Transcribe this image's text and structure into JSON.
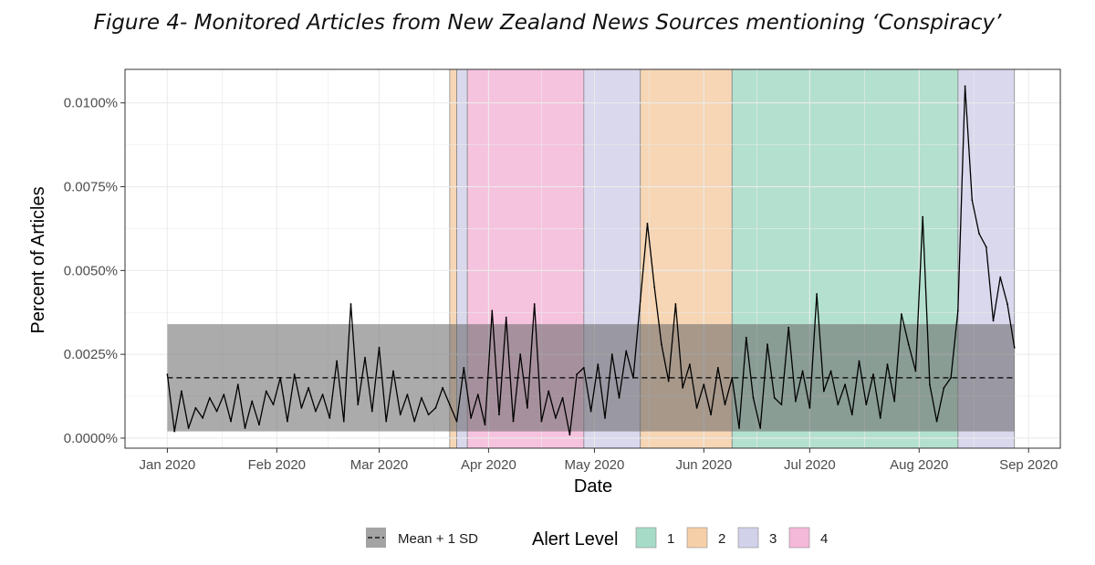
{
  "title": "Figure 4- Monitored Articles from New Zealand News Sources mentioning ‘Conspiracy’",
  "chart_data": {
    "type": "line",
    "xlabel": "Date",
    "ylabel": "Percent of Articles",
    "xlim": [
      "2019-12-20",
      "2020-09-10"
    ],
    "ylim": [
      -0.0003,
      0.011
    ],
    "x_ticks": [
      {
        "date": "2020-01-01",
        "label": "Jan 2020"
      },
      {
        "date": "2020-02-01",
        "label": "Feb 2020"
      },
      {
        "date": "2020-03-01",
        "label": "Mar 2020"
      },
      {
        "date": "2020-04-01",
        "label": "Apr 2020"
      },
      {
        "date": "2020-05-01",
        "label": "May 2020"
      },
      {
        "date": "2020-06-01",
        "label": "Jun 2020"
      },
      {
        "date": "2020-07-01",
        "label": "Jul 2020"
      },
      {
        "date": "2020-08-01",
        "label": "Aug 2020"
      },
      {
        "date": "2020-09-01",
        "label": "Sep 2020"
      }
    ],
    "y_ticks": [
      {
        "value": 0.0,
        "label": "0.0000%"
      },
      {
        "value": 0.0025,
        "label": "0.0025%"
      },
      {
        "value": 0.005,
        "label": "0.0050%"
      },
      {
        "value": 0.0075,
        "label": "0.0075%"
      },
      {
        "value": 0.01,
        "label": "0.0100%"
      }
    ],
    "grid": true,
    "mean": 0.0018,
    "sd_band": [
      0.0002,
      0.0034
    ],
    "alert_levels": [
      {
        "level": "2",
        "start": "2020-03-21",
        "end": "2020-03-23"
      },
      {
        "level": "3",
        "start": "2020-03-23",
        "end": "2020-03-26"
      },
      {
        "level": "4",
        "start": "2020-03-26",
        "end": "2020-04-28"
      },
      {
        "level": "3",
        "start": "2020-04-28",
        "end": "2020-05-14"
      },
      {
        "level": "2",
        "start": "2020-05-14",
        "end": "2020-06-09"
      },
      {
        "level": "1",
        "start": "2020-06-09",
        "end": "2020-08-12"
      },
      {
        "level": "3",
        "start": "2020-08-12",
        "end": "2020-08-28"
      }
    ],
    "series": [
      {
        "x": [
          "2020-01-01",
          "2020-01-03",
          "2020-01-05",
          "2020-01-07",
          "2020-01-09",
          "2020-01-11",
          "2020-01-13",
          "2020-01-15",
          "2020-01-17",
          "2020-01-19",
          "2020-01-21",
          "2020-01-23",
          "2020-01-25",
          "2020-01-27",
          "2020-01-29",
          "2020-01-31",
          "2020-02-02",
          "2020-02-04",
          "2020-02-06",
          "2020-02-08",
          "2020-02-10",
          "2020-02-12",
          "2020-02-14",
          "2020-02-16",
          "2020-02-18",
          "2020-02-20",
          "2020-02-22",
          "2020-02-24",
          "2020-02-26",
          "2020-02-28",
          "2020-03-01",
          "2020-03-03",
          "2020-03-05",
          "2020-03-07",
          "2020-03-09",
          "2020-03-11",
          "2020-03-13",
          "2020-03-15",
          "2020-03-17",
          "2020-03-19",
          "2020-03-21",
          "2020-03-23",
          "2020-03-25",
          "2020-03-27",
          "2020-03-29",
          "2020-03-31",
          "2020-04-02",
          "2020-04-04",
          "2020-04-06",
          "2020-04-08",
          "2020-04-10",
          "2020-04-12",
          "2020-04-14",
          "2020-04-16",
          "2020-04-18",
          "2020-04-20",
          "2020-04-22",
          "2020-04-24",
          "2020-04-26",
          "2020-04-28",
          "2020-04-30",
          "2020-05-02",
          "2020-05-04",
          "2020-05-06",
          "2020-05-08",
          "2020-05-10",
          "2020-05-12",
          "2020-05-14",
          "2020-05-16",
          "2020-05-18",
          "2020-05-20",
          "2020-05-22",
          "2020-05-24",
          "2020-05-26",
          "2020-05-28",
          "2020-05-30",
          "2020-06-01",
          "2020-06-03",
          "2020-06-05",
          "2020-06-07",
          "2020-06-09",
          "2020-06-11",
          "2020-06-13",
          "2020-06-15",
          "2020-06-17",
          "2020-06-19",
          "2020-06-21",
          "2020-06-23",
          "2020-06-25",
          "2020-06-27",
          "2020-06-29",
          "2020-07-01",
          "2020-07-03",
          "2020-07-05",
          "2020-07-07",
          "2020-07-09",
          "2020-07-11",
          "2020-07-13",
          "2020-07-15",
          "2020-07-17",
          "2020-07-19",
          "2020-07-21",
          "2020-07-23",
          "2020-07-25",
          "2020-07-27",
          "2020-07-29",
          "2020-07-31",
          "2020-08-02",
          "2020-08-04",
          "2020-08-06",
          "2020-08-08",
          "2020-08-10",
          "2020-08-12",
          "2020-08-14",
          "2020-08-16",
          "2020-08-18",
          "2020-08-20",
          "2020-08-22",
          "2020-08-24",
          "2020-08-26",
          "2020-08-28"
        ],
        "values": [
          0.0019,
          0.0002,
          0.0014,
          0.0003,
          0.0009,
          0.0006,
          0.0012,
          0.0008,
          0.0013,
          0.0005,
          0.0016,
          0.0003,
          0.0011,
          0.0004,
          0.0014,
          0.001,
          0.0018,
          0.0005,
          0.0019,
          0.0009,
          0.0015,
          0.0008,
          0.0013,
          0.0006,
          0.0023,
          0.0005,
          0.004,
          0.001,
          0.0024,
          0.0008,
          0.0027,
          0.0005,
          0.002,
          0.0007,
          0.0013,
          0.0005,
          0.0012,
          0.0007,
          0.0009,
          0.0015,
          0.001,
          0.0005,
          0.0021,
          0.0006,
          0.0013,
          0.0004,
          0.0038,
          0.0007,
          0.0036,
          0.0005,
          0.0025,
          0.0009,
          0.004,
          0.0005,
          0.0014,
          0.0006,
          0.0012,
          0.0001,
          0.0019,
          0.0021,
          0.0008,
          0.0022,
          0.0006,
          0.0025,
          0.0012,
          0.0026,
          0.0018,
          0.0041,
          0.0064,
          0.0045,
          0.0028,
          0.0017,
          0.004,
          0.0015,
          0.0022,
          0.0009,
          0.0016,
          0.0007,
          0.0021,
          0.001,
          0.0018,
          0.0003,
          0.003,
          0.0012,
          0.0003,
          0.0028,
          0.0012,
          0.001,
          0.0033,
          0.0011,
          0.002,
          0.0009,
          0.0043,
          0.0014,
          0.002,
          0.001,
          0.0016,
          0.0007,
          0.0023,
          0.001,
          0.0019,
          0.0006,
          0.0022,
          0.0011,
          0.0037,
          0.0028,
          0.002,
          0.0066,
          0.0016,
          0.0005,
          0.0015,
          0.0018,
          0.0038,
          0.0105,
          0.0071,
          0.0061,
          0.0057,
          0.0035,
          0.0048,
          0.004,
          0.0027
        ]
      }
    ]
  },
  "legend": {
    "mean_sd_label": "Mean + 1 SD",
    "alert_title": "Alert Level",
    "items": [
      {
        "label": "1",
        "color": "#a6dbc7"
      },
      {
        "label": "2",
        "color": "#f5cfa8"
      },
      {
        "label": "3",
        "color": "#d2d1ea"
      },
      {
        "label": "4",
        "color": "#f4b8d9"
      }
    ]
  },
  "colors": {
    "line": "#000000",
    "band": "#666666",
    "grid": "#ebebeb",
    "panel_border": "#333333"
  }
}
